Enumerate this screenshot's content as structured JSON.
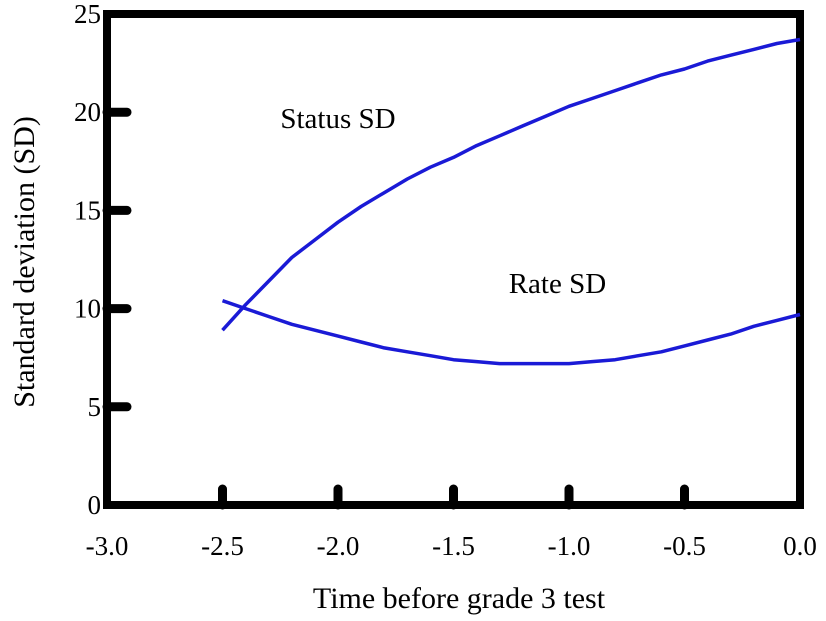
{
  "chart_data": {
    "type": "line",
    "title": "",
    "xlabel": "Time before grade 3 test",
    "ylabel": "Standard deviation (SD)",
    "xlim": [
      -3.0,
      0.0
    ],
    "ylim": [
      0,
      25
    ],
    "x_ticks": [
      -3.0,
      -2.5,
      -2.0,
      -1.5,
      -1.0,
      -0.5,
      0.0
    ],
    "x_tick_labels": [
      "-3.0",
      "-2.5",
      "-2.0",
      "-1.5",
      "-1.0",
      "-0.5",
      "0.0"
    ],
    "y_ticks": [
      0,
      5,
      10,
      15,
      20,
      25
    ],
    "y_tick_labels": [
      "0",
      "5",
      "10",
      "15",
      "20",
      "25"
    ],
    "grid": false,
    "legend": "none",
    "line_color": "#1a1ad6",
    "series": [
      {
        "x": [
          -2.5,
          -2.4,
          -2.3,
          -2.2,
          -2.1,
          -2.0,
          -1.9,
          -1.8,
          -1.7,
          -1.6,
          -1.5,
          -1.4,
          -1.3,
          -1.2,
          -1.1,
          -1.0,
          -0.9,
          -0.8,
          -0.7,
          -0.6,
          -0.5,
          -0.4,
          -0.3,
          -0.2,
          -0.1,
          0.0
        ],
        "y": [
          8.9,
          10.2,
          11.4,
          12.6,
          13.5,
          14.4,
          15.2,
          15.9,
          16.6,
          17.2,
          17.7,
          18.3,
          18.8,
          19.3,
          19.8,
          20.3,
          20.7,
          21.1,
          21.5,
          21.9,
          22.2,
          22.6,
          22.9,
          23.2,
          23.5,
          23.7
        ]
      },
      {
        "x": [
          -2.5,
          -2.4,
          -2.3,
          -2.2,
          -2.1,
          -2.0,
          -1.9,
          -1.8,
          -1.7,
          -1.6,
          -1.5,
          -1.4,
          -1.3,
          -1.2,
          -1.1,
          -1.0,
          -0.9,
          -0.8,
          -0.7,
          -0.6,
          -0.5,
          -0.4,
          -0.3,
          -0.2,
          -0.1,
          0.0
        ],
        "y": [
          10.4,
          10.0,
          9.6,
          9.2,
          8.9,
          8.6,
          8.3,
          8.0,
          7.8,
          7.6,
          7.4,
          7.3,
          7.2,
          7.2,
          7.2,
          7.2,
          7.3,
          7.4,
          7.6,
          7.8,
          8.1,
          8.4,
          8.7,
          9.1,
          9.4,
          9.7
        ]
      }
    ],
    "annotations": [
      {
        "text": "Status SD",
        "x": -2.0,
        "y": 19.2
      },
      {
        "text": "Rate SD",
        "x": -1.05,
        "y": 10.8
      }
    ]
  }
}
